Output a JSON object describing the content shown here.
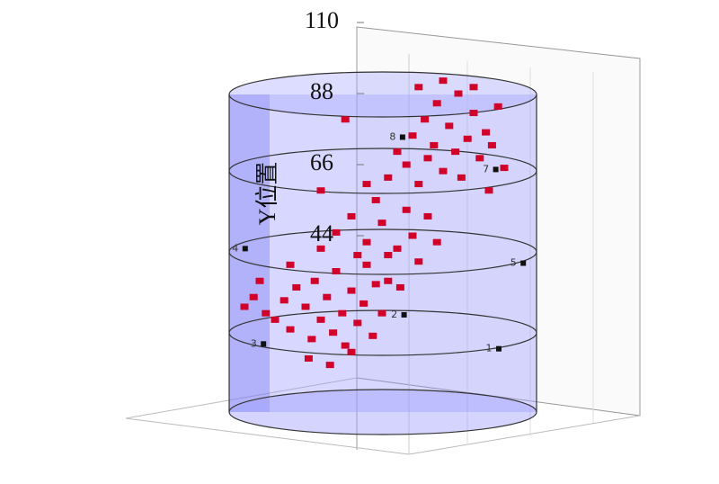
{
  "chart_data": {
    "type": "scatter3d",
    "y_label": "Y位置",
    "ylim": [
      0,
      110
    ],
    "yticks": [
      44,
      66,
      88,
      110
    ],
    "xlim": [
      0,
      100
    ],
    "color": "#d0022a",
    "x": [
      5,
      8,
      12,
      15,
      18,
      20,
      22,
      25,
      27,
      28,
      30,
      32,
      34,
      35,
      37,
      38,
      40,
      42,
      44,
      45,
      47,
      48,
      50,
      52,
      26,
      33,
      40,
      10,
      20,
      30,
      35,
      40,
      45,
      50,
      55,
      58,
      60,
      62,
      48,
      42,
      65,
      68,
      52,
      56,
      52,
      55,
      58,
      60,
      62,
      64,
      65,
      67,
      68,
      70,
      72,
      74,
      75,
      76,
      78,
      80,
      82,
      84,
      86,
      88,
      62,
      70,
      80,
      45,
      38,
      30,
      85,
      90
    ],
    "y": [
      22,
      25,
      20,
      18,
      24,
      15,
      28,
      22,
      12,
      30,
      18,
      25,
      14,
      33,
      20,
      10,
      27,
      17,
      23,
      35,
      13,
      29,
      20,
      38,
      6,
      4,
      8,
      30,
      35,
      40,
      45,
      50,
      42,
      48,
      40,
      52,
      44,
      36,
      55,
      38,
      50,
      42,
      30,
      28,
      62,
      70,
      66,
      75,
      60,
      80,
      68,
      72,
      85,
      64,
      78,
      70,
      88,
      62,
      74,
      82,
      68,
      76,
      72,
      84,
      90,
      92,
      90,
      60,
      80,
      58,
      58,
      65
    ],
    "annotations": [
      {
        "text": "1",
        "x": 85,
        "y": 9
      },
      {
        "text": "2",
        "x": 54,
        "y": 19.5
      },
      {
        "text": "3",
        "x": 8,
        "y": 10.5
      },
      {
        "text": "4",
        "x": 2,
        "y": 40
      },
      {
        "text": "5",
        "x": 93,
        "y": 35.5
      },
      {
        "text": "7",
        "x": 84,
        "y": 64.5
      },
      {
        "text": "8",
        "x": 53.5,
        "y": 74.5
      }
    ]
  }
}
